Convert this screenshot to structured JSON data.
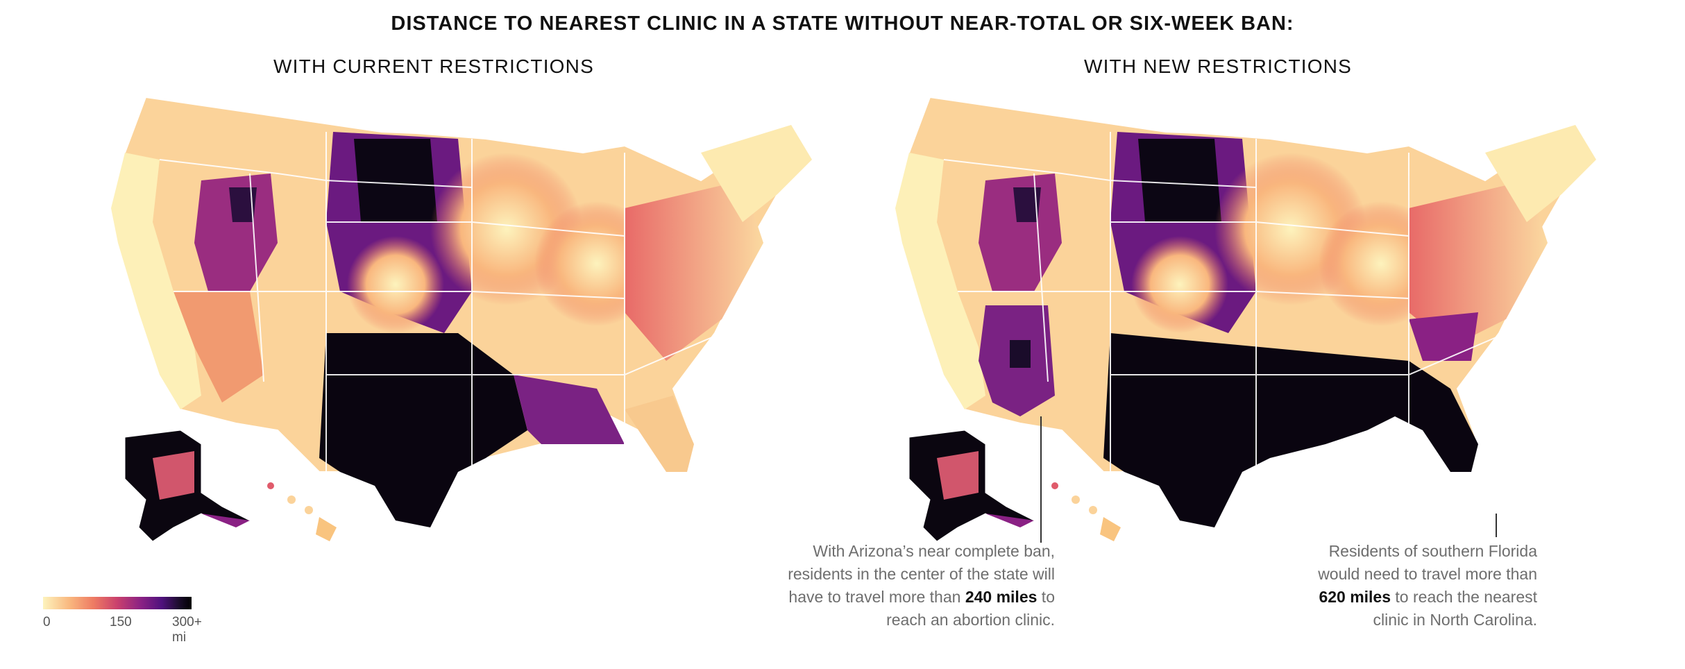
{
  "title": "DISTANCE TO NEAREST CLINIC IN A STATE WITHOUT NEAR-TOTAL OR SIX-WEEK BAN:",
  "panels": {
    "left": {
      "subtitle": "WITH CURRENT RESTRICTIONS"
    },
    "right": {
      "subtitle": "WITH NEW RESTRICTIONS"
    }
  },
  "annotations": {
    "arizona": {
      "line1": "With Arizona’s near complete ban,",
      "line2": "residents in the center of the state will",
      "line3_pre": "have to travel more than ",
      "line3_bold": "240 miles",
      "line3_post": " to",
      "line4": "reach an abortion clinic."
    },
    "florida": {
      "line1": "Residents of southern Florida",
      "line2": "would need to travel more than",
      "line3_bold": "620 miles",
      "line3_post": " to reach the nearest",
      "line4": "clinic in North Carolina."
    }
  },
  "legend": {
    "ticks": [
      "0",
      "150",
      "300+ mi"
    ]
  },
  "colors": {
    "near": "#fdf3bd",
    "mid": "#c9406d",
    "far": "#000000"
  }
}
